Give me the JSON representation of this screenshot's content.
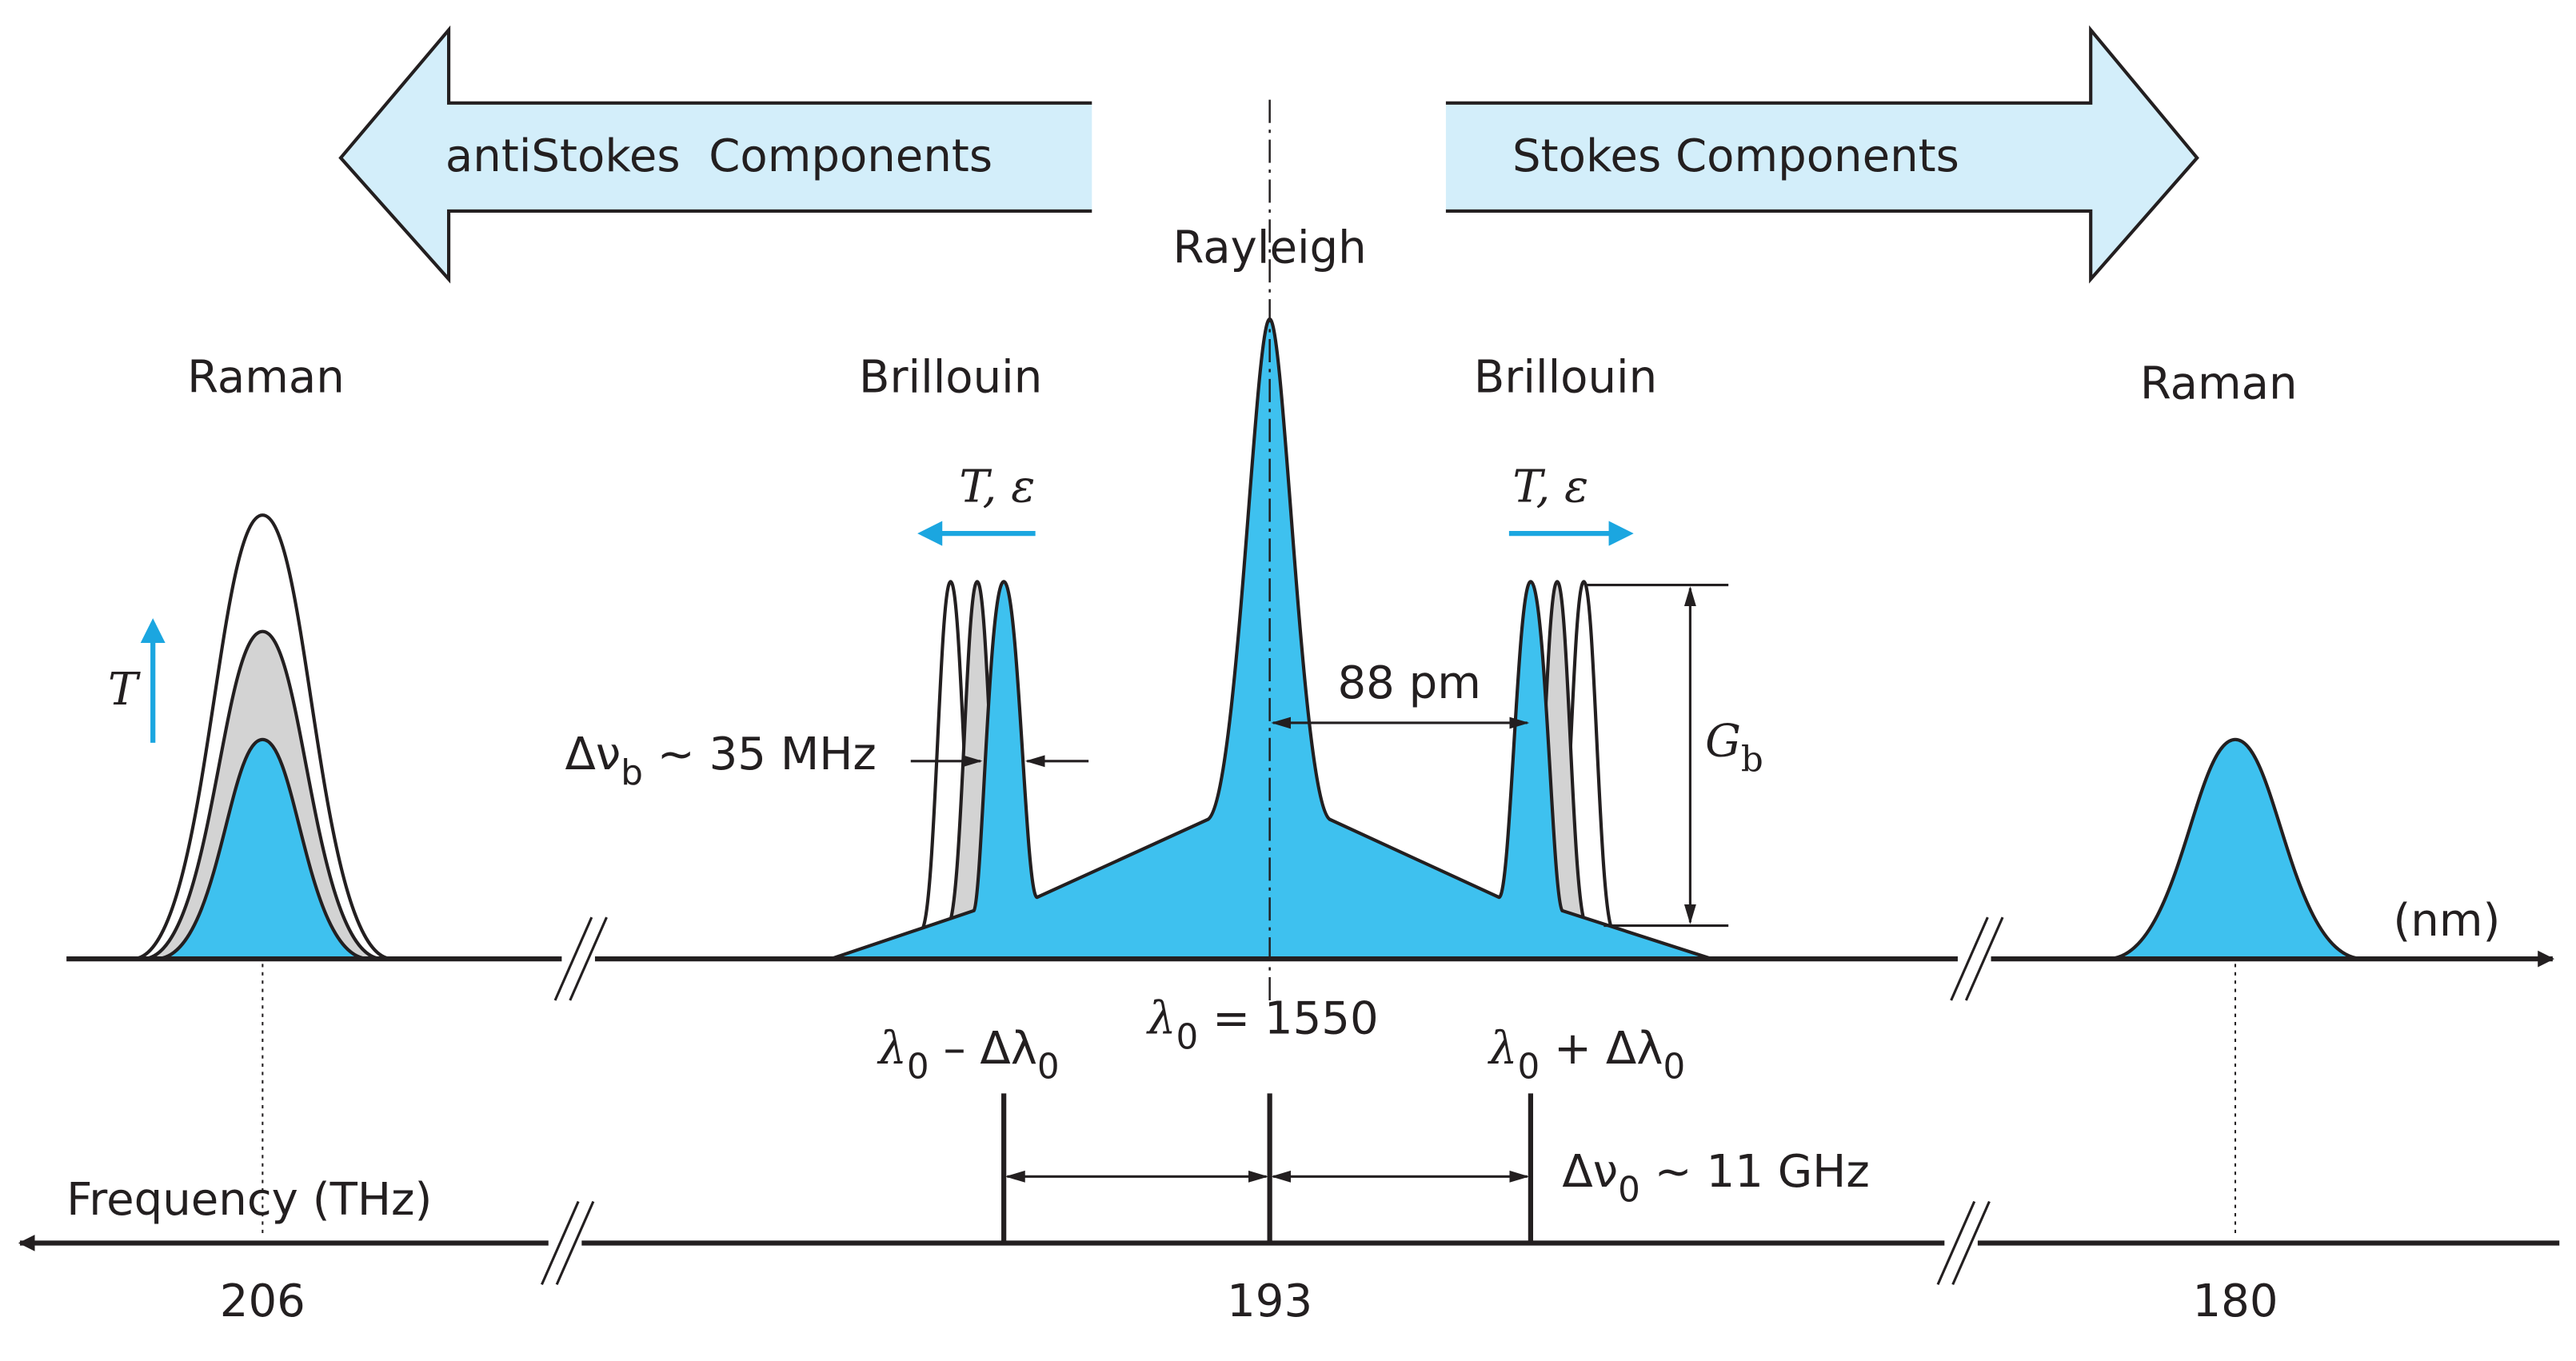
{
  "arrows": {
    "anti_stokes": "antiStokes  Components",
    "stokes": "Stokes Components"
  },
  "peaks": {
    "rayleigh": "Rayleigh",
    "raman_left": "Raman",
    "brillouin_left": "Brillouin",
    "brillouin_right": "Brillouin",
    "raman_right": "Raman"
  },
  "shift_labels": {
    "left": "T, ε",
    "right": "T, ε",
    "raman": "T"
  },
  "annotations": {
    "linewidth": {
      "main": "Δν",
      "sub": "b",
      "rest": " ~ 35 MHz"
    },
    "spacing": "88 pm",
    "gain": {
      "main": "G",
      "sub": "b"
    },
    "frequency_shift": {
      "main": "Δν",
      "sub": "0",
      "rest": " ~ 11 GHz"
    }
  },
  "wavelength_axis": {
    "unit": "(nm)",
    "labels": [
      {
        "main": "λ",
        "sub": "0",
        "rest": " – Δλ",
        "sub2": "0"
      },
      {
        "main": "λ",
        "sub": "0",
        "rest": " = 1550"
      },
      {
        "main": "λ",
        "sub": "0",
        "rest": " + Δλ",
        "sub2": "0"
      }
    ]
  },
  "frequency_axis": {
    "label": "Frequency (THz)",
    "ticks": [
      "206",
      "193",
      "180"
    ]
  }
}
